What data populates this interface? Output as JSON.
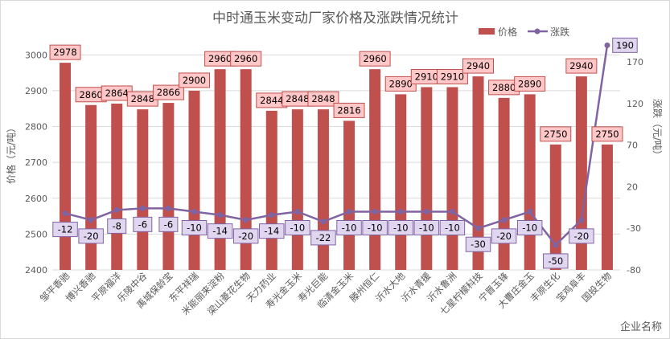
{
  "chart_data": {
    "type": "bar+line",
    "title": "中时通玉米变动厂家价格及涨跌情况统计",
    "xlabel": "企业名称",
    "ylabel": "价格（元/吨）",
    "y2label": "涨跌（元/吨）",
    "ylim": [
      2400,
      3050
    ],
    "y2lim": [
      -80,
      200
    ],
    "yticks": [
      2400,
      2500,
      2600,
      2700,
      2800,
      2900,
      3000
    ],
    "y2ticks": [
      -80,
      -30,
      20,
      70,
      120,
      170
    ],
    "legend": "top-right",
    "grid": true,
    "categories": [
      "邹平香驰",
      "博兴香驰",
      "平原福洋",
      "乐陵中谷",
      "禹城保龄宝",
      "东平祥瑞",
      "米能丽来淀粉",
      "梁山菱花生物",
      "天力药业",
      "寿光金玉米",
      "寿光巨能",
      "临清金玉米",
      "滕州恒仁",
      "沂水大地",
      "沂水青援",
      "沂水鲁洲",
      "七星柠檬科技",
      "宁晋玉锋",
      "大曹庄金玉",
      "丰原生化",
      "宝鸡阜丰",
      "国投生物"
    ],
    "series": [
      {
        "name": "价格",
        "type": "bar",
        "axis": "left",
        "color": "#c0504d",
        "values": [
          2978,
          2860,
          2864,
          2848,
          2866,
          2900,
          2960,
          2960,
          2844,
          2848,
          2848,
          2816,
          2960,
          2890,
          2910,
          2910,
          2940,
          2880,
          2890,
          2750,
          2940,
          2750
        ]
      },
      {
        "name": "涨跌",
        "type": "line",
        "axis": "right",
        "color": "#8064a2",
        "values": [
          -12,
          -20,
          -8,
          -6,
          -6,
          -10,
          -14,
          -20,
          -14,
          -10,
          -22,
          -10,
          -10,
          -10,
          -10,
          -10,
          -30,
          -20,
          -10,
          -50,
          -20,
          190
        ]
      }
    ]
  }
}
